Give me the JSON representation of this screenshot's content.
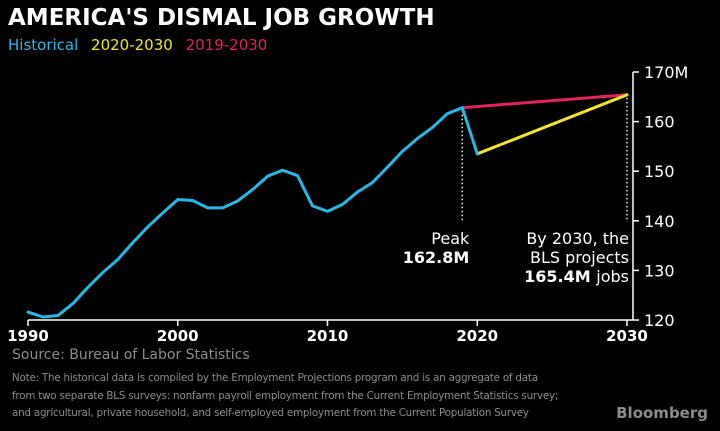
{
  "header": {
    "title": "AMERICA'S DISMAL JOB GROWTH"
  },
  "legend": [
    {
      "label": "Historical",
      "color": "#29b8e6"
    },
    {
      "label": "2020-2030",
      "color": "#f3e52e"
    },
    {
      "label": "2019-2030",
      "color": "#e0245e"
    }
  ],
  "annotations": {
    "peak": [
      "Peak",
      "162.8M"
    ],
    "projection": [
      "By 2030, the",
      "BLS projects",
      "165.4M jobs"
    ]
  },
  "footer": {
    "source": "Source: Bureau of Labor Statistics",
    "note_lines": [
      "Note: The historical data is compiled by the Employment Projections program and is an aggregate of data",
      "from two separate BLS surveys: nonfarm payroll employment from the Current Employment Statistics survey;",
      "and agricultural, private household, and self-employed employment from the Current Population Survey"
    ],
    "logo": "Bloomberg"
  },
  "chart_data": {
    "type": "line",
    "xlim": [
      1990,
      2030
    ],
    "ylim": [
      120,
      170
    ],
    "x_ticks": [
      "1990",
      "2000",
      "2010",
      "2020",
      "2030"
    ],
    "y_ticks": [
      "170M",
      "160",
      "150",
      "140",
      "130",
      "120"
    ],
    "axis_position": "right",
    "grid": false,
    "series": [
      {
        "name": "Historical",
        "color": "#29b8e6",
        "x": [
          1990,
          1991,
          1992,
          1993,
          1994,
          1995,
          1996,
          1997,
          1998,
          1999,
          2000,
          2001,
          2002,
          2003,
          2004,
          2005,
          2006,
          2007,
          2008,
          2009,
          2010,
          2011,
          2012,
          2013,
          2014,
          2015,
          2016,
          2017,
          2018,
          2019,
          2020
        ],
        "values": [
          121.6,
          120.6,
          120.9,
          123.3,
          126.6,
          129.6,
          132.2,
          135.6,
          138.8,
          141.6,
          144.3,
          144.1,
          142.6,
          142.6,
          144.0,
          146.3,
          149.0,
          150.2,
          149.1,
          143.0,
          141.9,
          143.3,
          145.8,
          147.7,
          150.8,
          154.0,
          156.6,
          158.8,
          161.6,
          162.8,
          153.5
        ]
      },
      {
        "name": "2020-2030",
        "color": "#f3e52e",
        "x": [
          2020,
          2030
        ],
        "values": [
          153.5,
          165.4
        ]
      },
      {
        "name": "2019-2030",
        "color": "#e0245e",
        "x": [
          2019,
          2030
        ],
        "values": [
          162.8,
          165.4
        ]
      }
    ]
  }
}
